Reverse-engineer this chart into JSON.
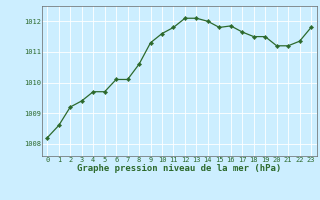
{
  "x_values": [
    0,
    1,
    2,
    3,
    4,
    5,
    6,
    7,
    8,
    9,
    10,
    11,
    12,
    13,
    14,
    15,
    16,
    17,
    18,
    19,
    20,
    21,
    22,
    23
  ],
  "y_values": [
    1008.2,
    1008.6,
    1009.2,
    1009.4,
    1009.7,
    1009.7,
    1010.1,
    1010.1,
    1010.6,
    1011.3,
    1011.6,
    1011.8,
    1012.1,
    1012.1,
    1012.0,
    1011.8,
    1011.85,
    1011.65,
    1011.5,
    1011.5,
    1011.2,
    1011.2,
    1011.35,
    1011.8
  ],
  "line_color": "#2d6a2d",
  "marker_color": "#2d6a2d",
  "bg_color": "#cceeff",
  "grid_color": "#ffffff",
  "label_color": "#2d6a2d",
  "ylim": [
    1007.6,
    1012.5
  ],
  "yticks": [
    1008,
    1009,
    1010,
    1011,
    1012
  ],
  "xticks": [
    0,
    1,
    2,
    3,
    4,
    5,
    6,
    7,
    8,
    9,
    10,
    11,
    12,
    13,
    14,
    15,
    16,
    17,
    18,
    19,
    20,
    21,
    22,
    23
  ],
  "xlabel": "Graphe pression niveau de la mer (hPa)",
  "tick_fontsize": 5,
  "xlabel_fontsize": 6.5,
  "marker_size": 2.2,
  "line_width": 0.9
}
